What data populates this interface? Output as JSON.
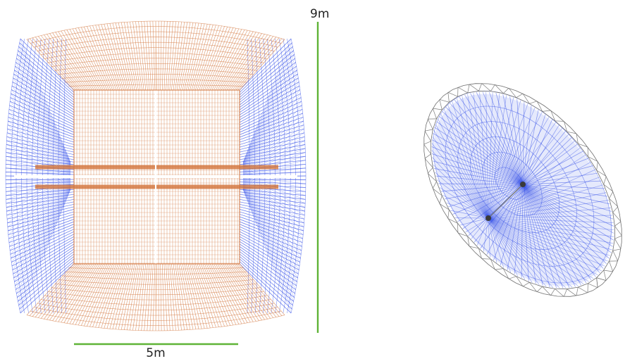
{
  "dimensions": {
    "width_label": "5m",
    "height_label": "9m",
    "color": "#5fb336"
  },
  "colors": {
    "orange": "#d2733a",
    "orange_light": "#eab48e",
    "blue": "#2b47e6",
    "gray": "#6f6f6f",
    "background": "#ffffff"
  },
  "views": {
    "left": "front-view-cable-structure",
    "right": "oblique-view-dish-structure"
  }
}
